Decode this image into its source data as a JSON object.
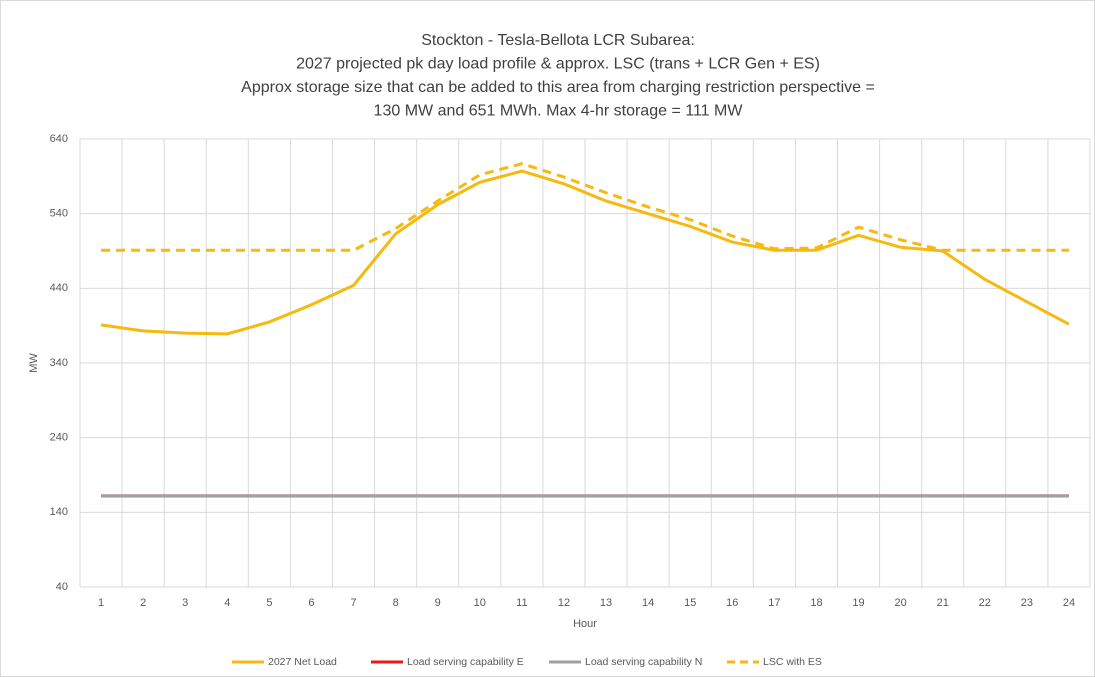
{
  "chart_data": {
    "type": "line",
    "title": [
      "Stockton - Tesla-Bellota LCR Subarea:",
      "2027 projected pk day load profile & approx. LSC (trans + LCR Gen + ES)",
      "Approx storage size that can be added to this area from charging restriction perspective =",
      "130 MW and 651 MWh. Max 4-hr storage = 111 MW"
    ],
    "x_label": "Hour",
    "y_label": "MW",
    "categories": [
      "1",
      "2",
      "3",
      "4",
      "5",
      "6",
      "7",
      "8",
      "9",
      "10",
      "11",
      "12",
      "13",
      "14",
      "15",
      "16",
      "17",
      "18",
      "19",
      "20",
      "21",
      "22",
      "23",
      "24"
    ],
    "series": [
      {
        "name": "2027 Net Load",
        "color": "#f5b90f",
        "dashed": false,
        "values": [
          391,
          383,
          380,
          379,
          395,
          418,
          444,
          513,
          552,
          582,
          597,
          580,
          557,
          540,
          523,
          502,
          491,
          491,
          511,
          495,
          490,
          452,
          422,
          392
        ]
      },
      {
        "name": "Load serving capability E",
        "color": "#e81a1a",
        "dashed": false,
        "values": [
          162,
          162,
          162,
          162,
          162,
          162,
          162,
          162,
          162,
          162,
          162,
          162,
          162,
          162,
          162,
          162,
          162,
          162,
          162,
          162,
          162,
          162,
          162,
          162
        ]
      },
      {
        "name": "Load serving capability N",
        "color": "#a0a0a0",
        "dashed": false,
        "values": [
          162,
          162,
          162,
          162,
          162,
          162,
          162,
          162,
          162,
          162,
          162,
          162,
          162,
          162,
          162,
          162,
          162,
          162,
          162,
          162,
          162,
          162,
          162,
          162
        ]
      },
      {
        "name": "LSC with ES",
        "color": "#f5b90f",
        "dashed": true,
        "values": [
          491,
          491,
          491,
          491,
          491,
          491,
          491,
          520,
          557,
          592,
          607,
          589,
          568,
          549,
          532,
          510,
          493,
          494,
          522,
          505,
          491,
          491,
          491,
          491
        ]
      }
    ],
    "ylim": [
      40,
      640
    ],
    "yticks": [
      40,
      140,
      240,
      340,
      440,
      540,
      640
    ],
    "grid": true,
    "legend": "bottom"
  }
}
